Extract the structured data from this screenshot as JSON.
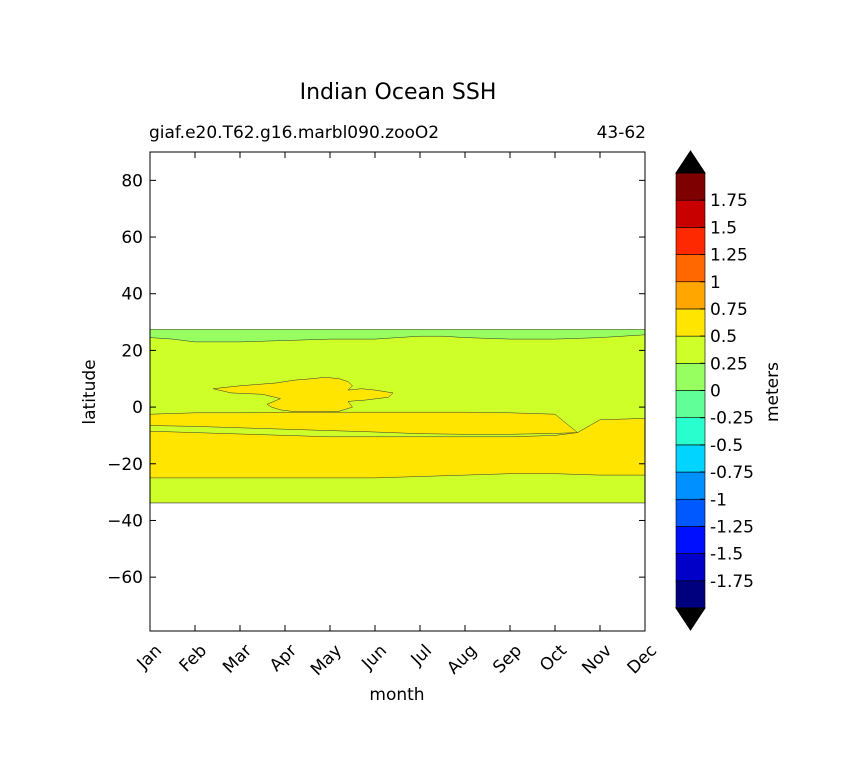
{
  "chart_data": {
    "type": "heatmap",
    "title": "Indian Ocean SSH",
    "subtitle_left": "giaf.e20.T62.g16.marbl090.zooO2",
    "subtitle_right": "43-62",
    "xlabel": "month",
    "ylabel": "latitude",
    "x_ticks": [
      "Jan",
      "Feb",
      "Mar",
      "Apr",
      "May",
      "Jun",
      "Jul",
      "Aug",
      "Sep",
      "Oct",
      "Nov",
      "Dec"
    ],
    "xlim": [
      0,
      11
    ],
    "ylim": [
      -79,
      90
    ],
    "y_ticks": [
      80,
      60,
      40,
      20,
      0,
      -20,
      -40,
      -60
    ],
    "y_tick_labels": [
      "80",
      "60",
      "40",
      "20",
      "0",
      "−20",
      "−40",
      "−60"
    ],
    "grid": false,
    "colorbar": {
      "label": "meters",
      "extend": "both",
      "boundaries": [
        -2,
        -1.75,
        -1.5,
        -1.25,
        -1,
        -0.75,
        -0.5,
        -0.25,
        0,
        0.25,
        0.5,
        0.75,
        1,
        1.25,
        1.5,
        1.75,
        2
      ],
      "colors": [
        "#00007f",
        "#0000c8",
        "#0010ff",
        "#0058ff",
        "#0090ff",
        "#00d4ff",
        "#29ffce",
        "#60ff97",
        "#97ff60",
        "#ceff29",
        "#ffe500",
        "#ffa700",
        "#ff6800",
        "#ff2900",
        "#c80000",
        "#7f0000"
      ],
      "under_color": "#000000",
      "over_color": "#000000",
      "tick_values": [
        1.75,
        1.5,
        1.25,
        1,
        0.75,
        0.5,
        0.25,
        0,
        -0.25,
        -0.5,
        -0.75,
        -1,
        -1.25,
        -1.5,
        -1.75
      ],
      "tick_labels": [
        "1.75",
        "1.5",
        "1.25",
        "1",
        "0.75",
        "0.5",
        "0.25",
        "0",
        "-0.25",
        "-0.5",
        "-0.75",
        "-1",
        "-1.25",
        "-1.5",
        "-1.75"
      ]
    },
    "regions": [
      {
        "name": "ocean-domain",
        "level": "0 to 0.25",
        "color": "#97ff60",
        "x": [
          0,
          11,
          11,
          0
        ],
        "y": [
          27.4,
          27.4,
          -33.8,
          -33.8
        ]
      },
      {
        "name": "main-band",
        "level": "0.25 to 0.5",
        "color": "#ceff29",
        "x": [
          0,
          0.5,
          1,
          2,
          3,
          4,
          5,
          5.5,
          6,
          6.5,
          7,
          8,
          9,
          10,
          11,
          11,
          10,
          9,
          8,
          7,
          6,
          5,
          4,
          3,
          2,
          1,
          0
        ],
        "y": [
          24.5,
          24,
          23,
          23,
          23.5,
          24,
          24,
          24.5,
          25,
          25,
          24.5,
          24,
          24,
          24.5,
          25.5,
          -33.8,
          -33.8,
          -33.8,
          -33.8,
          -33.8,
          -33.8,
          -33.8,
          -33.8,
          -33.8,
          -33.8,
          -33.8,
          -33.8
        ]
      },
      {
        "name": "south-core",
        "level": "0.5 to 0.75",
        "color": "#ffe500",
        "x": [
          0,
          1,
          2,
          3,
          4,
          5,
          6,
          7,
          8,
          9,
          9.5,
          10,
          11,
          11,
          10,
          9,
          8,
          7,
          6,
          5,
          4,
          3,
          2,
          1,
          0
        ],
        "y": [
          -8.5,
          -9,
          -9.5,
          -10,
          -10.5,
          -10.5,
          -10.5,
          -10.5,
          -10.5,
          -10,
          -9,
          -4.5,
          -4,
          -24,
          -24,
          -23.5,
          -23.5,
          -24,
          -24.5,
          -25,
          -25,
          -25,
          -25,
          -25,
          -25
        ]
      },
      {
        "name": "equatorial-core",
        "level": "0.5 to 0.75",
        "color": "#ffe500",
        "x": [
          0,
          1,
          2,
          3,
          4,
          5,
          6,
          7,
          8,
          9,
          9.5,
          9,
          8,
          7,
          6,
          5,
          4,
          3,
          2,
          1,
          0
        ],
        "y": [
          -2.5,
          -2,
          -2,
          -1.8,
          -1.8,
          -1.8,
          -1.8,
          -1.8,
          -2,
          -2.5,
          -9,
          -9.3,
          -9.6,
          -9.6,
          -9.4,
          -8.8,
          -8.3,
          -7.8,
          -7.3,
          -6.8,
          -6.5
        ]
      },
      {
        "name": "north-lobe",
        "level": "0.5 to 0.75",
        "color": "#ffe500",
        "x": [
          1.4,
          2,
          2.8,
          3.2,
          3.6,
          3.9,
          4.2,
          4.4,
          4.5,
          4.4,
          4.7,
          5.0,
          5.4,
          5.3,
          4.8,
          4.4,
          4.5,
          4.2,
          3.7,
          3.2,
          2.9,
          2.7,
          2.6,
          2.9,
          2.5,
          1.8,
          1.4
        ],
        "y": [
          6.5,
          7.5,
          8.5,
          9.5,
          10,
          10.5,
          10,
          9,
          7.5,
          6,
          6.5,
          6,
          5,
          3.5,
          2.5,
          2,
          0,
          -1.5,
          -1.6,
          -1.6,
          -1,
          0,
          1,
          3,
          4.5,
          5,
          6.5
        ]
      }
    ]
  }
}
